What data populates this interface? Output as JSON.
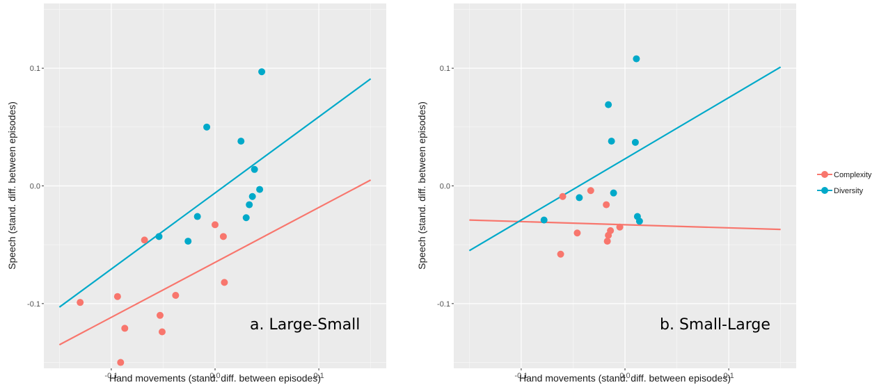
{
  "chart_data": [
    {
      "type": "scatter",
      "panel_label": "a. Large-Small",
      "xlabel": "Hand movements (stand. diff. between episodes)",
      "ylabel": "Speech (stand. diff. between episodes)",
      "xlim": [
        -0.165,
        0.165
      ],
      "ylim": [
        -0.155,
        0.155
      ],
      "x_ticks": [
        {
          "value": -0.1,
          "label": "-0.1"
        },
        {
          "value": 0.0,
          "label": "0.0"
        },
        {
          "value": 0.1,
          "label": "0.1"
        }
      ],
      "y_ticks": [
        {
          "value": -0.1,
          "label": "-0.1"
        },
        {
          "value": 0.0,
          "label": "0.0"
        },
        {
          "value": 0.1,
          "label": "0.1"
        }
      ],
      "grid": true,
      "series": [
        {
          "name": "Complexity",
          "color": "#F8766D",
          "points": [
            [
              -0.13,
              -0.099
            ],
            [
              -0.094,
              -0.094
            ],
            [
              -0.091,
              -0.15
            ],
            [
              -0.087,
              -0.121
            ],
            [
              -0.068,
              -0.046
            ],
            [
              -0.053,
              -0.11
            ],
            [
              -0.051,
              -0.124
            ],
            [
              -0.038,
              -0.093
            ],
            [
              0.0,
              -0.033
            ],
            [
              0.008,
              -0.043
            ],
            [
              0.009,
              -0.082
            ]
          ],
          "fit_line": {
            "x": [
              -0.15,
              0.15
            ],
            "y": [
              -0.135,
              0.005
            ]
          }
        },
        {
          "name": "Diversity",
          "color": "#00A9C9",
          "points": [
            [
              -0.054,
              -0.043
            ],
            [
              -0.026,
              -0.047
            ],
            [
              -0.017,
              -0.026
            ],
            [
              -0.008,
              0.05
            ],
            [
              0.025,
              0.038
            ],
            [
              0.03,
              -0.027
            ],
            [
              0.033,
              -0.016
            ],
            [
              0.036,
              -0.009
            ],
            [
              0.038,
              0.014
            ],
            [
              0.043,
              -0.003
            ],
            [
              0.045,
              0.097
            ]
          ],
          "fit_line": {
            "x": [
              -0.15,
              0.15
            ],
            "y": [
              -0.103,
              0.091
            ]
          }
        }
      ]
    },
    {
      "type": "scatter",
      "panel_label": "b. Small-Large",
      "xlabel": "Hand movements (stand. diff. between episodes)",
      "ylabel": "Speech (stand. diff. between episodes)",
      "xlim": [
        -0.165,
        0.165
      ],
      "ylim": [
        -0.155,
        0.155
      ],
      "x_ticks": [
        {
          "value": -0.1,
          "label": "-0.1"
        },
        {
          "value": 0.0,
          "label": "0.0"
        },
        {
          "value": 0.1,
          "label": "0.1"
        }
      ],
      "y_ticks": [
        {
          "value": -0.1,
          "label": "-0.1"
        },
        {
          "value": 0.0,
          "label": "0.0"
        },
        {
          "value": 0.1,
          "label": "0.1"
        }
      ],
      "grid": true,
      "series": [
        {
          "name": "Complexity",
          "color": "#F8766D",
          "points": [
            [
              -0.062,
              -0.058
            ],
            [
              -0.06,
              -0.009
            ],
            [
              -0.046,
              -0.04
            ],
            [
              -0.033,
              -0.004
            ],
            [
              -0.018,
              -0.016
            ],
            [
              -0.017,
              -0.047
            ],
            [
              -0.016,
              -0.042
            ],
            [
              -0.014,
              -0.038
            ],
            [
              -0.005,
              -0.035
            ]
          ],
          "fit_line": {
            "x": [
              -0.15,
              0.15
            ],
            "y": [
              -0.029,
              -0.037
            ]
          }
        },
        {
          "name": "Diversity",
          "color": "#00A9C9",
          "points": [
            [
              -0.078,
              -0.029
            ],
            [
              -0.044,
              -0.01
            ],
            [
              -0.016,
              0.069
            ],
            [
              -0.013,
              0.038
            ],
            [
              -0.011,
              -0.006
            ],
            [
              0.01,
              0.037
            ],
            [
              0.011,
              0.108
            ],
            [
              0.012,
              -0.026
            ],
            [
              0.014,
              -0.03
            ]
          ],
          "fit_line": {
            "x": [
              -0.15,
              0.15
            ],
            "y": [
              -0.055,
              0.101
            ]
          }
        }
      ]
    }
  ],
  "legend": {
    "placement": "right",
    "items": [
      {
        "name": "Complexity",
        "color": "#F8766D"
      },
      {
        "name": "Diversity",
        "color": "#00A9C9"
      }
    ]
  },
  "style": {
    "panel_background": "#EBEBEB",
    "grid_color": "#FFFFFF"
  }
}
